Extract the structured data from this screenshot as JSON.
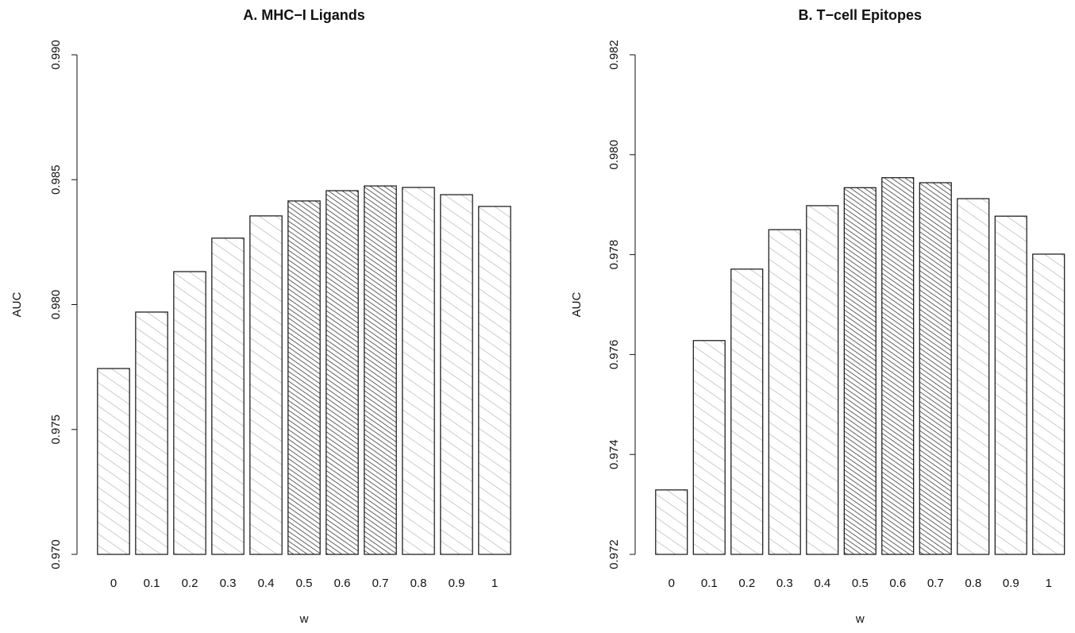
{
  "chart_data": [
    {
      "type": "bar",
      "title": "A. MHC−I Ligands",
      "x_label": "w",
      "y_label": "AUC",
      "categories": [
        "0",
        "0.1",
        "0.2",
        "0.3",
        "0.4",
        "0.5",
        "0.6",
        "0.7",
        "0.8",
        "0.9",
        "1"
      ],
      "values": [
        0.97744,
        0.9797,
        0.98132,
        0.98266,
        0.98355,
        0.98415,
        0.98456,
        0.98475,
        0.98469,
        0.9844,
        0.98393
      ],
      "hatch": [
        "sparse",
        "sparse",
        "sparse",
        "sparse",
        "sparse",
        "dense",
        "dense",
        "dense",
        "sparse",
        "sparse",
        "sparse"
      ],
      "ylim": [
        0.97,
        0.99
      ],
      "yticks": [
        {
          "value": 0.97,
          "label": "0.970"
        },
        0.975,
        {
          "value": 0.98,
          "label": "0.980"
        },
        0.985,
        {
          "value": 0.99,
          "label": "0.990"
        }
      ]
    },
    {
      "type": "bar",
      "title": "B. T−cell Epitopes",
      "x_label": "w",
      "y_label": "AUC",
      "categories": [
        "0",
        "0.1",
        "0.2",
        "0.3",
        "0.4",
        "0.5",
        "0.6",
        "0.7",
        "0.8",
        "0.9",
        "1"
      ],
      "values": [
        0.97329,
        0.97628,
        0.97771,
        0.9785,
        0.97898,
        0.97934,
        0.97954,
        0.97944,
        0.97912,
        0.97877,
        0.97801
      ],
      "hatch": [
        "sparse",
        "sparse",
        "sparse",
        "sparse",
        "sparse",
        "dense",
        "dense",
        "dense",
        "sparse",
        "sparse",
        "sparse"
      ],
      "ylim": [
        0.972,
        0.982
      ],
      "yticks": [
        0.972,
        0.974,
        0.976,
        0.978,
        {
          "value": 0.98,
          "label": "0.980"
        },
        0.982
      ]
    }
  ]
}
